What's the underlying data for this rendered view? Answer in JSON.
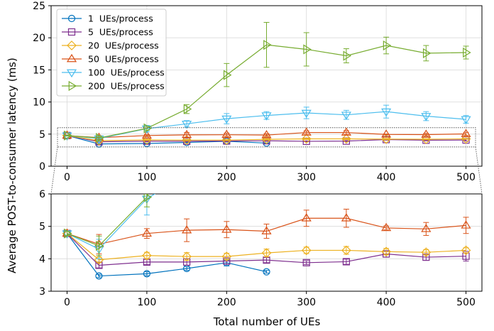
{
  "chart_data": {
    "type": "line",
    "ylabel": "Average POST-to-consumer latency (ms)",
    "xlabel": "Total number of UEs",
    "x_ticks": [
      0,
      100,
      200,
      300,
      400,
      500
    ],
    "grid": true,
    "legend_position": "top-left",
    "panels": [
      {
        "name": "top",
        "xlim": [
          -20,
          520
        ],
        "ylim": [
          0,
          25
        ],
        "y_ticks": [
          0,
          5,
          10,
          15,
          20,
          25
        ],
        "zoom_box": {
          "x": [
            -12,
            512
          ],
          "y": [
            3,
            6
          ]
        }
      },
      {
        "name": "bottom-zoom",
        "xlim": [
          -20,
          520
        ],
        "ylim": [
          3,
          6
        ],
        "y_ticks": [
          3,
          4,
          5,
          6
        ]
      }
    ],
    "series": [
      {
        "name": "1  UEs/process",
        "color": "#0072BD",
        "marker": "circle",
        "x": [
          0,
          40,
          100,
          150,
          200,
          250
        ],
        "y": [
          4.78,
          3.47,
          3.54,
          3.7,
          3.88,
          3.6
        ],
        "err": [
          0.06,
          0.05,
          0.06,
          0.06,
          0.1,
          0.04
        ]
      },
      {
        "name": "5  UEs/process",
        "color": "#7E2F8E",
        "marker": "square",
        "x": [
          0,
          40,
          100,
          150,
          200,
          250,
          300,
          350,
          400,
          450,
          500
        ],
        "y": [
          4.78,
          3.8,
          3.9,
          3.9,
          3.93,
          3.96,
          3.88,
          3.91,
          4.15,
          4.05,
          4.08
        ],
        "err": [
          0.06,
          0.08,
          0.08,
          0.1,
          0.1,
          0.08,
          0.06,
          0.08,
          0.1,
          0.1,
          0.15
        ]
      },
      {
        "name": "20  UEs/process",
        "color": "#EDB120",
        "marker": "diamond",
        "x": [
          0,
          40,
          100,
          150,
          200,
          250,
          300,
          350,
          400,
          450,
          500
        ],
        "y": [
          4.78,
          3.97,
          4.1,
          4.07,
          4.07,
          4.18,
          4.26,
          4.26,
          4.22,
          4.2,
          4.26
        ],
        "err": [
          0.06,
          0.08,
          0.1,
          0.12,
          0.1,
          0.12,
          0.1,
          0.12,
          0.1,
          0.08,
          0.08
        ]
      },
      {
        "name": "50  UEs/process",
        "color": "#D95319",
        "marker": "triangle-up",
        "x": [
          0,
          40,
          100,
          150,
          200,
          250,
          300,
          350,
          400,
          450,
          500
        ],
        "y": [
          4.78,
          4.45,
          4.78,
          4.88,
          4.9,
          4.85,
          5.25,
          5.25,
          4.95,
          4.92,
          5.03
        ],
        "err": [
          0.06,
          0.3,
          0.15,
          0.35,
          0.25,
          0.22,
          0.25,
          0.28,
          0.06,
          0.2,
          0.25
        ]
      },
      {
        "name": "100  UEs/process",
        "color": "#4DBEEE",
        "marker": "triangle-down",
        "x": [
          0,
          40,
          100,
          150,
          200,
          250,
          300,
          350,
          400,
          450,
          500
        ],
        "y": [
          4.78,
          4.3,
          5.85,
          6.6,
          7.4,
          7.9,
          8.3,
          8.0,
          8.5,
          7.8,
          7.3
        ],
        "err": [
          0.06,
          0.3,
          0.5,
          0.5,
          0.8,
          0.6,
          0.9,
          0.7,
          1.0,
          0.7,
          0.6
        ]
      },
      {
        "name": "200  UEs/process",
        "color": "#77AC30",
        "marker": "triangle-right",
        "x": [
          0,
          40,
          100,
          150,
          200,
          250,
          300,
          350,
          400,
          450,
          500
        ],
        "y": [
          4.78,
          4.4,
          5.9,
          8.9,
          14.2,
          18.9,
          18.2,
          17.2,
          18.8,
          17.6,
          17.7
        ],
        "err": [
          0.06,
          0.3,
          0.3,
          0.7,
          1.8,
          3.5,
          2.6,
          1.1,
          1.3,
          1.2,
          1.0
        ]
      }
    ]
  }
}
